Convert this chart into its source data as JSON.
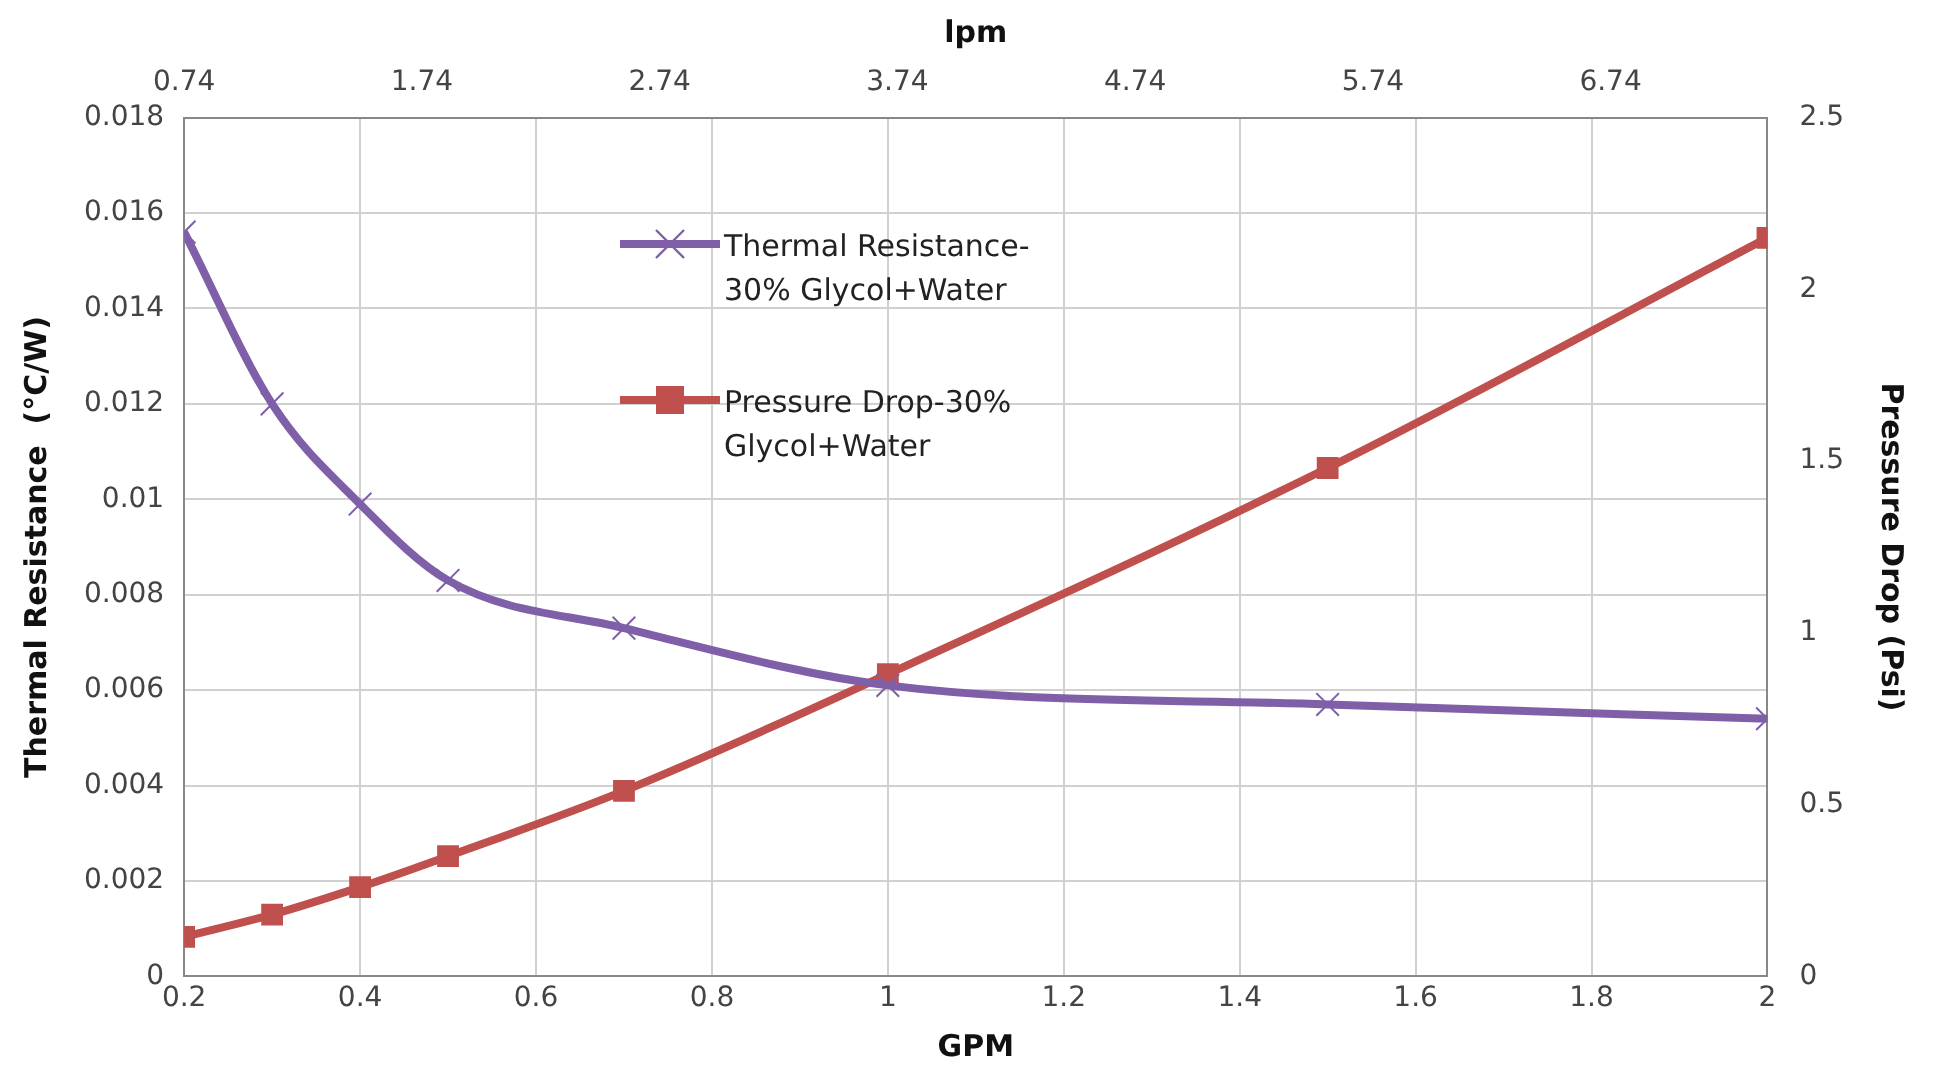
{
  "chart_data": {
    "type": "line",
    "xlabel": "GPM",
    "ylabel": "Thermal Resistance  (°C/W)",
    "y2label": "Pressure Drop (Psi)",
    "x2label": "lpm",
    "x": [
      0.2,
      0.3,
      0.4,
      0.5,
      0.7,
      1.0,
      1.5,
      2.0
    ],
    "series": [
      {
        "name": "Thermal Resistance-30% Glycol+Water",
        "color": "#7f5fa8",
        "marker": "cross",
        "values": [
          0.0156,
          0.012,
          0.0099,
          0.0083,
          0.0073,
          0.0061,
          0.0057,
          0.0054
        ]
      },
      {
        "name": "Pressure Drop-30% Glycol+Water",
        "color": "#c0504d",
        "marker": "square",
        "axis": "y2",
        "values": [
          0.115,
          0.18,
          0.26,
          0.35,
          0.54,
          0.88,
          1.48,
          2.15
        ]
      }
    ],
    "xlim": [
      0.2,
      2
    ],
    "xticks": [
      0.2,
      0.4,
      0.6,
      0.8,
      1,
      1.2,
      1.4,
      1.6,
      1.8,
      2
    ],
    "x2lim": [
      0.74,
      7.4
    ],
    "x2ticks": [
      0.74,
      1.74,
      2.74,
      3.74,
      4.74,
      5.74,
      6.74
    ],
    "ylim": [
      0,
      0.018
    ],
    "yticks": [
      0,
      0.002,
      0.004,
      0.006,
      0.008,
      0.01,
      0.012,
      0.014,
      0.016,
      0.018
    ],
    "y2lim": [
      0,
      2.5
    ],
    "y2ticks": [
      0,
      0.5,
      1,
      1.5,
      2,
      2.5
    ],
    "grid": true,
    "legend": "top",
    "line_style": "solid"
  }
}
